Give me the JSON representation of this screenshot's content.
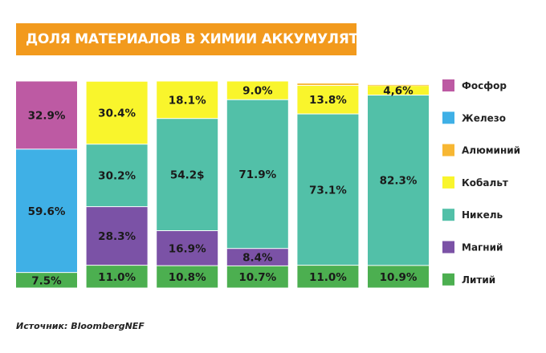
{
  "title": "ДОЛЯ МАТЕРИАЛОВ В ХИМИИ АККУМУЛЯТОРОВ ПО ВЕСУ",
  "source": "Источник: BloombergNEF",
  "chart_data": {
    "type": "bar",
    "stacked": true,
    "normalized": true,
    "ylim": [
      0,
      100
    ],
    "categories": [
      "",
      "",
      "",
      "",
      "",
      ""
    ],
    "series": [
      {
        "name": "Литий",
        "color": "#4caf50",
        "values": [
          7.5,
          11.0,
          10.8,
          10.7,
          11.0,
          10.9
        ],
        "labels": [
          "7.5%",
          "11.0%",
          "10.8%",
          "10.7%",
          "11.0%",
          "10.9%"
        ]
      },
      {
        "name": "Магний",
        "color": "#7b52a6",
        "values": [
          0,
          28.3,
          16.9,
          8.4,
          0,
          0
        ],
        "labels": [
          "",
          "28.3%",
          "16.9%",
          "8.4%",
          "",
          ""
        ]
      },
      {
        "name": "Никель",
        "color": "#52c0a8",
        "values": [
          0,
          30.2,
          54.2,
          71.9,
          73.1,
          82.3
        ],
        "labels": [
          "",
          "30.2%",
          "54.2$",
          "71.9%",
          "73.1%",
          "82.3%"
        ]
      },
      {
        "name": "Кобальт",
        "color": "#f9f52c",
        "values": [
          0,
          30.4,
          18.1,
          9.0,
          13.8,
          4.6
        ],
        "labels": [
          "",
          "30.4%",
          "18.1%",
          "9.0%",
          "13.8%",
          "4,6%"
        ]
      },
      {
        "name": "Алюминий",
        "color": "#f7b733",
        "values": [
          0,
          0,
          0,
          0,
          1.1,
          0.5
        ],
        "labels": [
          "",
          "",
          "",
          "",
          "",
          ""
        ]
      },
      {
        "name": "Железо",
        "color": "#3fb0e6",
        "values": [
          59.6,
          0,
          0,
          0,
          0,
          0
        ],
        "labels": [
          "59.6%",
          "",
          "",
          "",
          "",
          ""
        ]
      },
      {
        "name": "Фосфор",
        "color": "#bd5aa3",
        "values": [
          32.9,
          0,
          0,
          0,
          0,
          0
        ],
        "labels": [
          "32.9%",
          "",
          "",
          "",
          "",
          ""
        ]
      }
    ],
    "legend_order": [
      "Фосфор",
      "Железо",
      "Алюминий",
      "Кобальт",
      "Никель",
      "Магний",
      "Литий"
    ],
    "legend_position": "right"
  }
}
